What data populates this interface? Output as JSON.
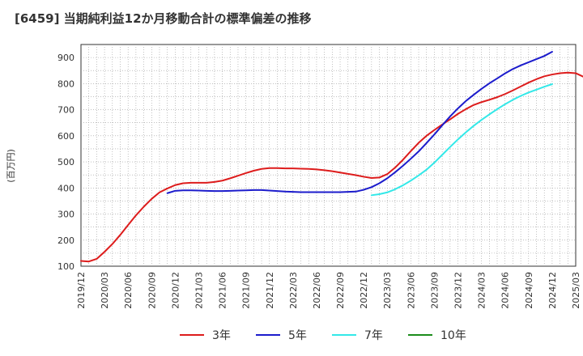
{
  "chart_data": {
    "type": "line",
    "title": "[6459]  当期純利益12か月移動合計の標準偏差の推移",
    "ylabel": "(百万円)",
    "xlabel": "",
    "ylim": [
      100,
      950
    ],
    "yticks": [
      100,
      200,
      300,
      400,
      500,
      600,
      700,
      800,
      900
    ],
    "xticks": [
      "2019/12",
      "2020/03",
      "2020/06",
      "2020/09",
      "2020/12",
      "2021/03",
      "2021/06",
      "2021/09",
      "2021/12",
      "2022/03",
      "2022/06",
      "2022/09",
      "2022/12",
      "2023/03",
      "2023/06",
      "2023/09",
      "2023/12",
      "2024/03",
      "2024/06",
      "2024/09",
      "2024/12",
      "2025/03"
    ],
    "grid": true,
    "legend_position": "bottom",
    "series": [
      {
        "name": "3年",
        "color": "#dd1c1c",
        "start_index": 0,
        "values": [
          120,
          118,
          128,
          155,
          185,
          220,
          258,
          295,
          328,
          358,
          383,
          398,
          411,
          418,
          420,
          420,
          420,
          423,
          428,
          437,
          447,
          457,
          466,
          473,
          476,
          476,
          475,
          475,
          474,
          473,
          471,
          468,
          464,
          459,
          454,
          449,
          443,
          438,
          440,
          453,
          478,
          508,
          541,
          573,
          600,
          622,
          643,
          663,
          684,
          702,
          718,
          729,
          738,
          748,
          760,
          774,
          789,
          804,
          817,
          828,
          835,
          840,
          842,
          840,
          826
        ]
      },
      {
        "name": "5年",
        "color": "#1c1ccc",
        "start_index": 11,
        "values": [
          380,
          389,
          391,
          391,
          390,
          389,
          388,
          388,
          389,
          390,
          391,
          392,
          392,
          390,
          388,
          386,
          385,
          384,
          384,
          384,
          384,
          384,
          384,
          385,
          386,
          393,
          403,
          418,
          437,
          460,
          485,
          512,
          540,
          572,
          605,
          640,
          674,
          705,
          733,
          757,
          780,
          801,
          820,
          839,
          856,
          870,
          882,
          894,
          906,
          922
        ]
      },
      {
        "name": "7年",
        "color": "#33e8e8",
        "start_index": 37,
        "values": [
          372,
          376,
          383,
          395,
          410,
          428,
          448,
          470,
          497,
          527,
          557,
          586,
          613,
          638,
          661,
          682,
          702,
          721,
          738,
          753,
          766,
          777,
          788,
          798
        ]
      },
      {
        "name": "10年",
        "color": "#1c8c1c",
        "start_index": 0,
        "values": []
      }
    ]
  }
}
